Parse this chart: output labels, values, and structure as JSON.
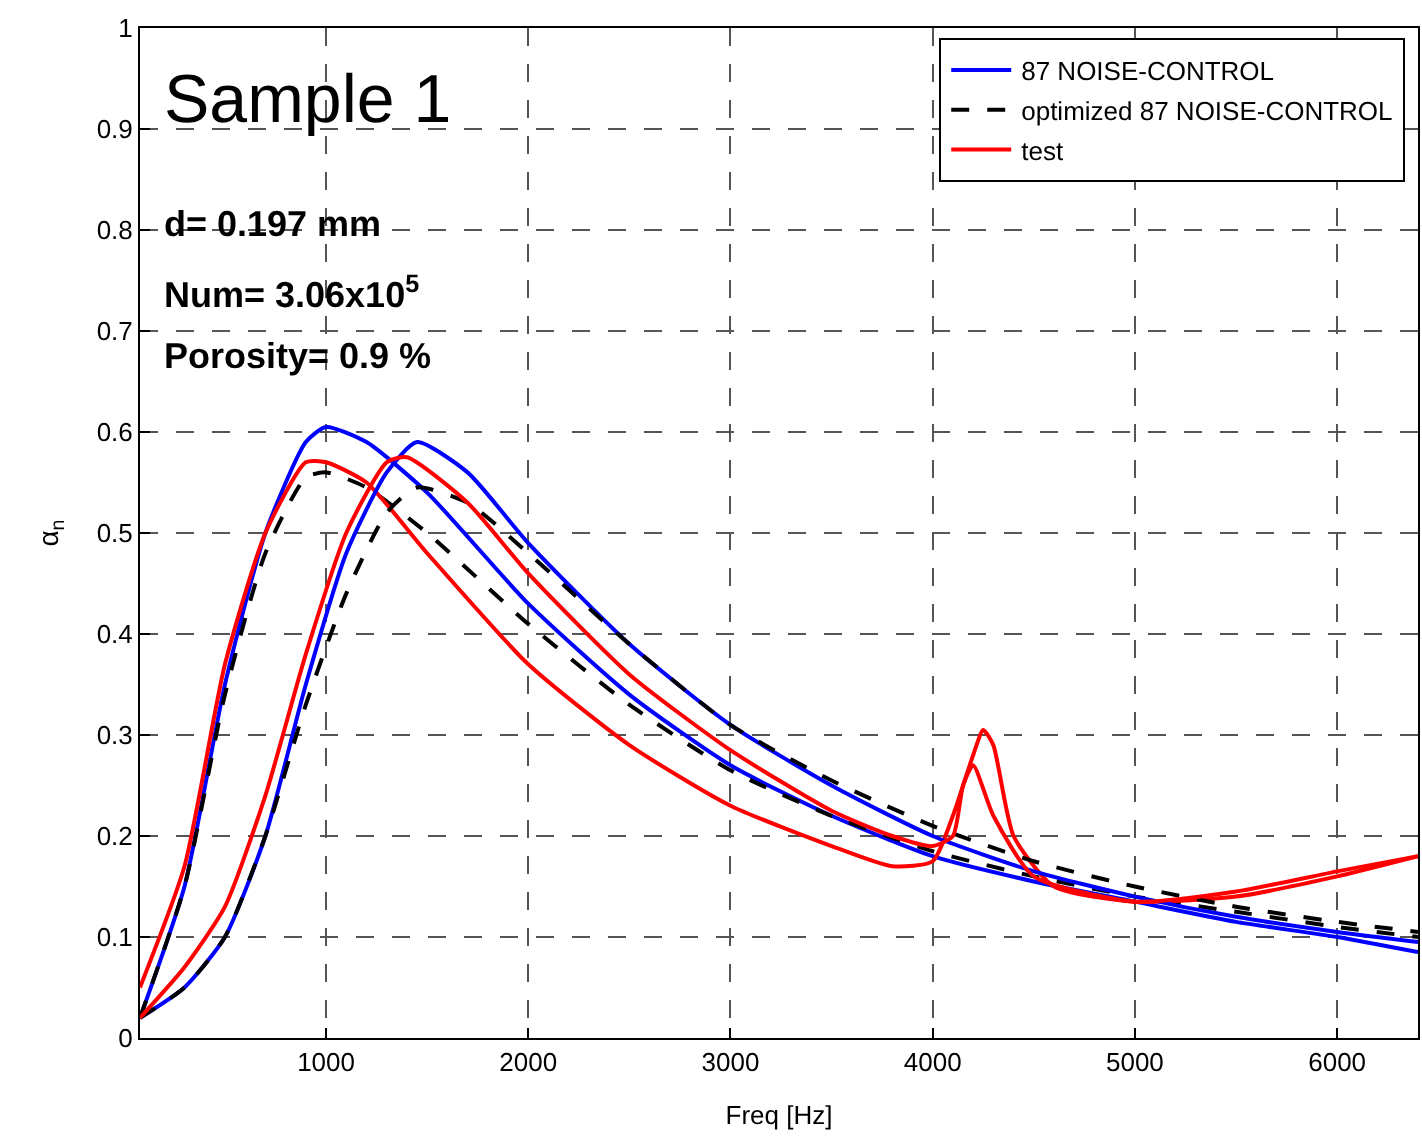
{
  "chart_data": {
    "type": "line",
    "xlabel": "Freq [Hz]",
    "ylabel": "α$_{n}$",
    "xlim": [
      80,
      6400
    ],
    "xticks": [
      1000,
      2000,
      3000,
      4000,
      5000,
      6000
    ],
    "ylim": [
      0,
      1
    ],
    "yticks": [
      0,
      0.1,
      0.2,
      0.3,
      0.4,
      0.5,
      0.6,
      0.7,
      0.8,
      0.9,
      1
    ],
    "grid": true,
    "legend": "top right",
    "annotations": [
      "Sample 1",
      "d= 0.197 mm",
      "Num= 3.06x10$^{5}$",
      "Porosity= 0.9 %"
    ],
    "series": [
      {
        "name": "87 NOISE-CONTROL",
        "color": "#0000ff",
        "line_style": "solid",
        "x": [
          80,
          300,
          500,
          700,
          900,
          1000,
          1200,
          1500,
          2000,
          2500,
          3000,
          3500,
          4000,
          4500,
          5000,
          5500,
          6000,
          6400
        ],
        "values": [
          0.02,
          0.15,
          0.35,
          0.5,
          0.59,
          0.605,
          0.59,
          0.54,
          0.43,
          0.34,
          0.27,
          0.22,
          0.18,
          0.155,
          0.135,
          0.115,
          0.1,
          0.085
        ]
      },
      {
        "name": "optimized 87 NOISE-CONTROL",
        "color": "#000000",
        "line_style": "dashed",
        "x": [
          80,
          300,
          500,
          700,
          900,
          1000,
          1200,
          1500,
          2000,
          2500,
          3000,
          3500,
          4000,
          4500,
          5000,
          5500,
          6000,
          6400
        ],
        "values": [
          0.02,
          0.15,
          0.34,
          0.48,
          0.555,
          0.56,
          0.545,
          0.5,
          0.41,
          0.33,
          0.265,
          0.22,
          0.185,
          0.16,
          0.14,
          0.125,
          0.11,
          0.1
        ]
      },
      {
        "name": "test",
        "color": "#ff0000",
        "line_style": "solid",
        "x": [
          80,
          300,
          500,
          700,
          900,
          1000,
          1200,
          1500,
          2000,
          2500,
          3000,
          3500,
          3800,
          4000,
          4100,
          4200,
          4250,
          4300,
          4400,
          4600,
          5000,
          5500,
          6000,
          6400
        ],
        "values": [
          0.05,
          0.17,
          0.37,
          0.5,
          0.57,
          0.57,
          0.55,
          0.48,
          0.37,
          0.29,
          0.23,
          0.19,
          0.17,
          0.175,
          0.22,
          0.28,
          0.305,
          0.29,
          0.2,
          0.15,
          0.135,
          0.14,
          0.16,
          0.18
        ]
      },
      {
        "color": "#0000ff",
        "line_style": "solid",
        "x": [
          80,
          300,
          500,
          700,
          900,
          1100,
          1300,
          1450,
          1700,
          2000,
          2500,
          3000,
          3500,
          4000,
          4500,
          5000,
          5500,
          6000,
          6400
        ],
        "values": [
          0.02,
          0.05,
          0.1,
          0.2,
          0.35,
          0.48,
          0.56,
          0.59,
          0.56,
          0.49,
          0.39,
          0.31,
          0.25,
          0.2,
          0.165,
          0.14,
          0.12,
          0.105,
          0.095
        ]
      },
      {
        "color": "#000000",
        "line_style": "dashed",
        "x": [
          80,
          300,
          500,
          700,
          900,
          1100,
          1300,
          1450,
          1700,
          2000,
          2500,
          3000,
          3500,
          4000,
          4500,
          5000,
          5500,
          6000,
          6400
        ],
        "values": [
          0.02,
          0.05,
          0.1,
          0.2,
          0.33,
          0.44,
          0.52,
          0.545,
          0.53,
          0.48,
          0.39,
          0.31,
          0.255,
          0.21,
          0.175,
          0.15,
          0.13,
          0.115,
          0.105
        ]
      },
      {
        "color": "#ff0000",
        "line_style": "solid",
        "x": [
          80,
          300,
          500,
          700,
          900,
          1100,
          1300,
          1400,
          1700,
          2000,
          2500,
          3000,
          3500,
          3800,
          4000,
          4100,
          4150,
          4200,
          4300,
          4500,
          5000,
          5500,
          6000,
          6400
        ],
        "values": [
          0.02,
          0.07,
          0.13,
          0.24,
          0.38,
          0.5,
          0.57,
          0.575,
          0.53,
          0.46,
          0.36,
          0.285,
          0.225,
          0.2,
          0.19,
          0.2,
          0.25,
          0.27,
          0.22,
          0.16,
          0.135,
          0.145,
          0.165,
          0.18
        ]
      }
    ]
  }
}
